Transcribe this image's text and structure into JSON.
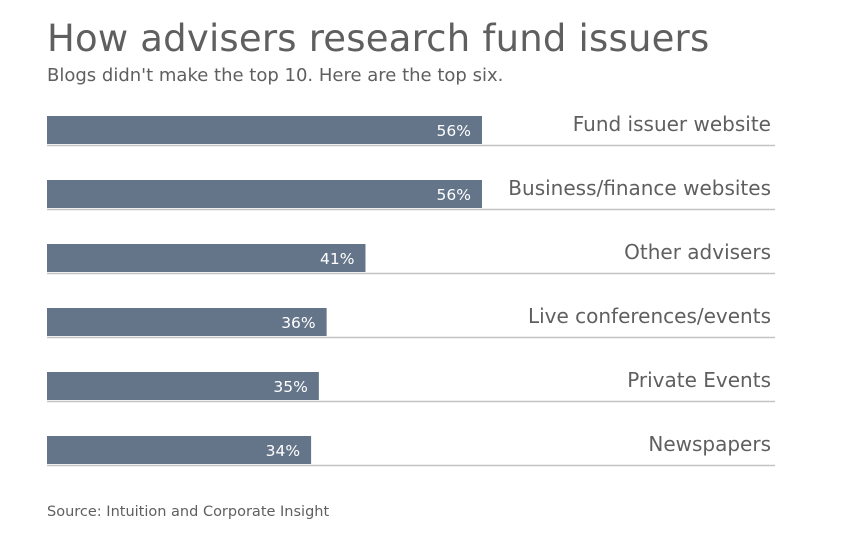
{
  "title": "How advisers research fund issuers",
  "subtitle": "Blogs didn't make the top 10. Here are the top six.",
  "source": "Source: Intuition and Corporate Insight",
  "colors": {
    "bar": "#64758a",
    "baseline": "#c4c4c4",
    "text": "#5f5f5f",
    "value_label": "#ffffff"
  },
  "chart_data": {
    "type": "bar",
    "orientation": "horizontal",
    "title": "How advisers research fund issuers",
    "subtitle": "Blogs didn't make the top 10. Here are the top six.",
    "categories": [
      "Fund issuer website",
      "Business/finance websites",
      "Other advisers",
      "Live conferences/events",
      "Private Events",
      "Newspapers"
    ],
    "values": [
      56,
      56,
      41,
      36,
      35,
      34
    ],
    "value_labels": [
      "56%",
      "56%",
      "41%",
      "36%",
      "35%",
      "34%"
    ],
    "unit": "%",
    "xlim": [
      0,
      100
    ],
    "grid": false,
    "legend": "none"
  }
}
